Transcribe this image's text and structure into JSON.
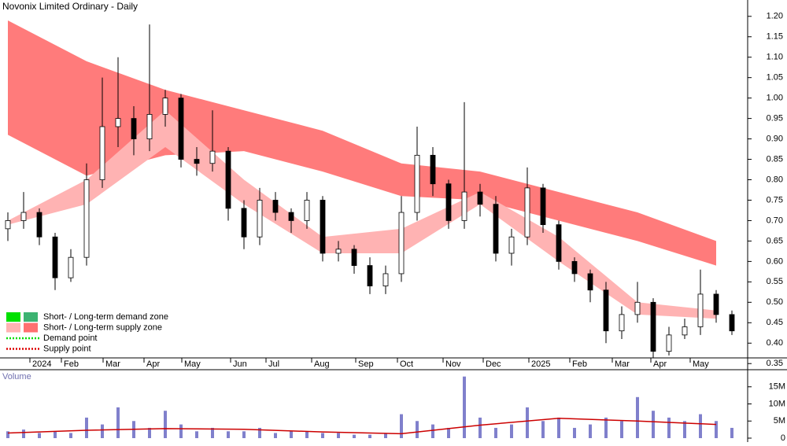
{
  "chart_data": [
    {
      "type": "candlestick",
      "title": "Novonix Limited Ordinary - Daily",
      "x": [
        0,
        2,
        4,
        6,
        8,
        10,
        12,
        14,
        16,
        18,
        20,
        22,
        24,
        26,
        28,
        30,
        32,
        34,
        36,
        38,
        40,
        42,
        44,
        46,
        48,
        50,
        52,
        54,
        56,
        58,
        60,
        62,
        64,
        66,
        68,
        70,
        72,
        74,
        76,
        78,
        80,
        82,
        84,
        86,
        88,
        90,
        92
      ],
      "open": [
        0.68,
        0.7,
        0.72,
        0.66,
        0.56,
        0.61,
        0.8,
        0.93,
        0.95,
        0.9,
        0.96,
        1.0,
        0.85,
        0.84,
        0.87,
        0.73,
        0.66,
        0.75,
        0.72,
        0.7,
        0.75,
        0.62,
        0.63,
        0.59,
        0.54,
        0.57,
        0.72,
        0.86,
        0.79,
        0.7,
        0.77,
        0.74,
        0.62,
        0.66,
        0.78,
        0.69,
        0.6,
        0.57,
        0.53,
        0.43,
        0.47,
        0.5,
        0.38,
        0.42,
        0.44,
        0.52,
        0.47
      ],
      "high": [
        0.72,
        0.77,
        0.73,
        0.67,
        0.63,
        0.84,
        1.05,
        1.1,
        0.98,
        1.18,
        1.02,
        1.01,
        0.88,
        0.97,
        0.88,
        0.75,
        0.78,
        0.77,
        0.73,
        0.77,
        0.76,
        0.65,
        0.64,
        0.61,
        0.59,
        0.76,
        0.93,
        0.88,
        0.8,
        0.99,
        0.79,
        0.76,
        0.68,
        0.83,
        0.79,
        0.7,
        0.61,
        0.58,
        0.55,
        0.49,
        0.55,
        0.51,
        0.44,
        0.46,
        0.58,
        0.53,
        0.48
      ],
      "low": [
        0.65,
        0.68,
        0.64,
        0.53,
        0.55,
        0.59,
        0.78,
        0.88,
        0.86,
        0.87,
        0.93,
        0.83,
        0.81,
        0.82,
        0.7,
        0.63,
        0.64,
        0.7,
        0.67,
        0.68,
        0.6,
        0.6,
        0.57,
        0.52,
        0.52,
        0.55,
        0.7,
        0.76,
        0.68,
        0.68,
        0.71,
        0.6,
        0.59,
        0.64,
        0.67,
        0.58,
        0.55,
        0.5,
        0.4,
        0.41,
        0.45,
        0.36,
        0.37,
        0.41,
        0.42,
        0.45,
        0.42
      ],
      "close": [
        0.7,
        0.72,
        0.66,
        0.56,
        0.61,
        0.8,
        0.93,
        0.95,
        0.9,
        0.96,
        1.0,
        0.85,
        0.84,
        0.87,
        0.73,
        0.66,
        0.75,
        0.72,
        0.7,
        0.75,
        0.62,
        0.63,
        0.59,
        0.54,
        0.57,
        0.72,
        0.86,
        0.79,
        0.7,
        0.77,
        0.74,
        0.62,
        0.66,
        0.78,
        0.69,
        0.6,
        0.57,
        0.53,
        0.43,
        0.47,
        0.5,
        0.38,
        0.42,
        0.44,
        0.52,
        0.47,
        0.43
      ],
      "up_color": "#ffffff",
      "down_color": "#000000",
      "band_x": [
        0,
        10,
        20,
        30,
        40,
        50,
        60,
        70,
        80,
        90
      ],
      "bands": [
        {
          "color": "#ff7b7b",
          "upper": [
            1.19,
            1.09,
            1.02,
            0.97,
            0.92,
            0.84,
            0.82,
            0.77,
            0.72,
            0.65
          ],
          "lower": [
            0.91,
            0.81,
            0.86,
            0.87,
            0.82,
            0.76,
            0.75,
            0.7,
            0.65,
            0.59
          ]
        },
        {
          "color": "#ffb3b3",
          "upper": [
            0.7,
            0.8,
            0.97,
            0.8,
            0.66,
            0.68,
            0.77,
            0.66,
            0.5,
            0.48
          ],
          "lower": [
            0.69,
            0.74,
            0.88,
            0.74,
            0.62,
            0.62,
            0.74,
            0.6,
            0.47,
            0.46
          ]
        }
      ],
      "xlim": [
        -1,
        94
      ],
      "xticks": [
        {
          "value": 2.8,
          "label": "2024"
        },
        {
          "value": 6.8,
          "label": "Feb"
        },
        {
          "value": 12.1,
          "label": "Mar"
        },
        {
          "value": 17.3,
          "label": "Apr"
        },
        {
          "value": 22.1,
          "label": "May"
        },
        {
          "value": 28.3,
          "label": "Jun"
        },
        {
          "value": 32.8,
          "label": "Jul"
        },
        {
          "value": 38.6,
          "label": "Aug"
        },
        {
          "value": 44.2,
          "label": "Sep"
        },
        {
          "value": 49.5,
          "label": "Oct"
        },
        {
          "value": 55.3,
          "label": "Nov"
        },
        {
          "value": 60.4,
          "label": "Dec"
        },
        {
          "value": 66.2,
          "label": "2025"
        },
        {
          "value": 71.4,
          "label": "Feb"
        },
        {
          "value": 76.8,
          "label": "Mar"
        },
        {
          "value": 81.7,
          "label": "Apr"
        },
        {
          "value": 86.7,
          "label": "May"
        }
      ],
      "ylim": [
        0.335,
        1.24
      ],
      "yticks": [
        {
          "value": 1.2,
          "label": "1.20"
        },
        1.15,
        {
          "value": 1.1,
          "label": "1.10"
        },
        1.05,
        {
          "value": 1.0,
          "label": "1.00"
        },
        0.95,
        {
          "value": 0.9,
          "label": "0.90"
        },
        0.85,
        {
          "value": 0.8,
          "label": "0.80"
        },
        0.75,
        {
          "value": 0.7,
          "label": "0.70"
        },
        0.65,
        {
          "value": 0.6,
          "label": "0.60"
        },
        0.55,
        {
          "value": 0.5,
          "label": "0.50"
        },
        0.45,
        {
          "value": 0.4,
          "label": "0.40"
        },
        0.35
      ],
      "legend": [
        {
          "label": "Short- / Long-term demand zone",
          "colors": [
            "#00e000",
            "#3cb371"
          ],
          "style": "swatch"
        },
        {
          "label": "Short- / Long-term supply zone",
          "colors": [
            "#ffb3b3",
            "#ff7070"
          ],
          "style": "swatch"
        },
        {
          "label": "Demand point",
          "colors": [
            "#00dd00"
          ],
          "style": "dotted"
        },
        {
          "label": "Supply point",
          "colors": [
            "#dd0000"
          ],
          "style": "dotted"
        }
      ]
    },
    {
      "type": "bar",
      "title": "Volume",
      "color": "#8080cc",
      "values": [
        2000000,
        2500000,
        1500000,
        2000000,
        1500000,
        6000000,
        4000000,
        9000000,
        5000000,
        3000000,
        8000000,
        4000000,
        2000000,
        3000000,
        2000000,
        2000000,
        3000000,
        1500000,
        2000000,
        2000000,
        1500000,
        1500000,
        1000000,
        1000000,
        1500000,
        7000000,
        5000000,
        4000000,
        3000000,
        18000000,
        6000000,
        3000000,
        4000000,
        9000000,
        5000000,
        6000000,
        3000000,
        4000000,
        6000000,
        5000000,
        12000000,
        8000000,
        6000000,
        5000000,
        7000000,
        5000000,
        3000000
      ],
      "average": {
        "color": "#cc0000",
        "values": [
          1500000,
          2300000,
          2800000,
          2600000,
          1800000,
          1300000,
          3800000,
          5800000,
          5000000,
          4000000
        ]
      },
      "ylim": [
        0,
        20000000
      ],
      "yticks": [
        {
          "value": 15000000,
          "label": "15M"
        },
        {
          "value": 10000000,
          "label": "10M"
        },
        {
          "value": 5000000,
          "label": "5M"
        },
        0
      ]
    }
  ]
}
